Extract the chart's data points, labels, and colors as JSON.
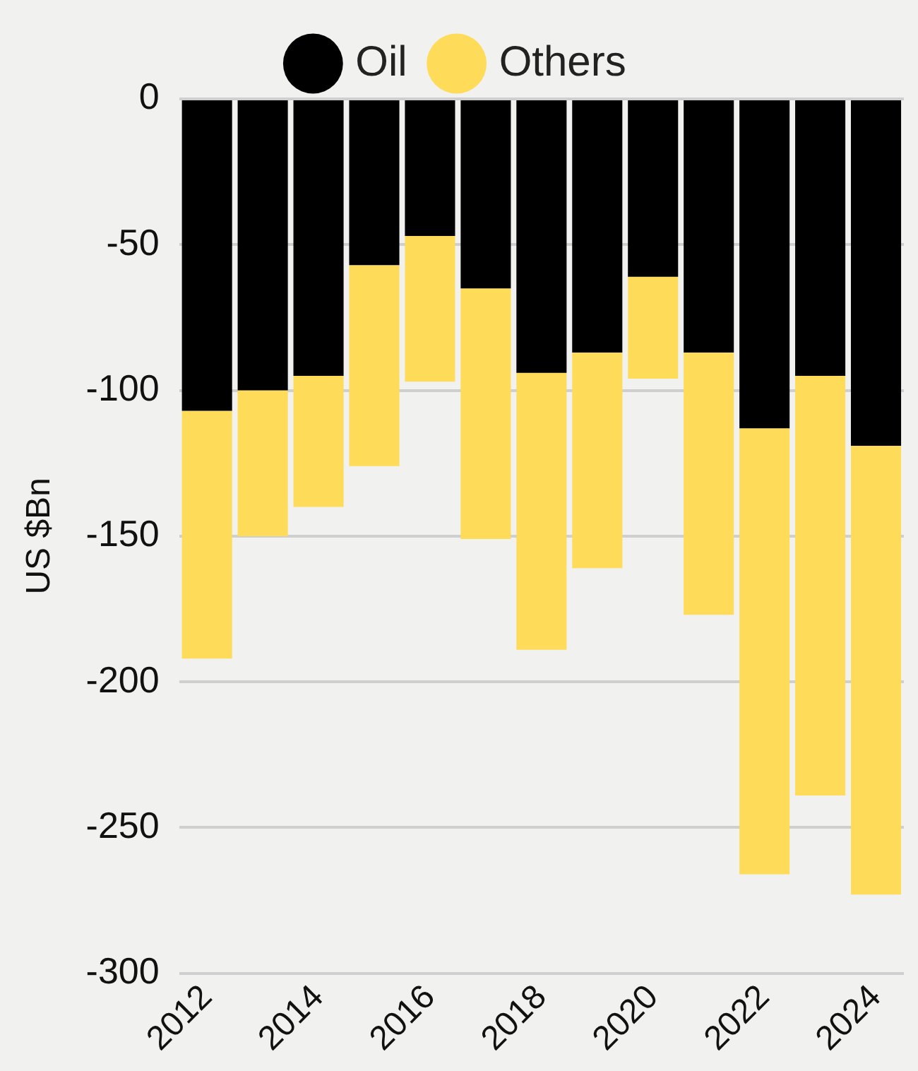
{
  "chart_data": {
    "type": "bar",
    "stacked": true,
    "ylabel": "US $Bn",
    "categories": [
      "2012",
      null,
      "2014",
      null,
      "2016",
      null,
      "2018",
      null,
      "2020",
      null,
      "2022",
      null,
      "2024"
    ],
    "series": [
      {
        "name": "Oil",
        "color": "#000000",
        "values": [
          -107,
          -100,
          -95,
          -57,
          -47,
          -65,
          -94,
          -87,
          -61,
          -87,
          -113,
          -95,
          -119
        ]
      },
      {
        "name": "Others",
        "color": "#fedb58",
        "values": [
          -85,
          -50,
          -45,
          -69,
          -50,
          -86,
          -95,
          -74,
          -35,
          -90,
          -153,
          -144,
          -154
        ]
      }
    ],
    "ylim": [
      -300,
      0
    ],
    "yticks": [
      0,
      -50,
      -100,
      -150,
      -200,
      -250,
      -300
    ],
    "grid": "y",
    "legend": "top"
  }
}
